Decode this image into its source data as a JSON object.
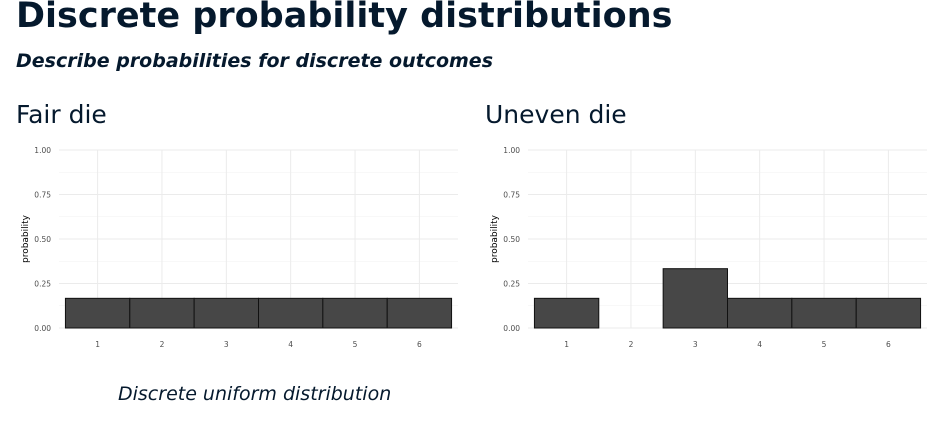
{
  "header": {
    "title": "Discrete probability distributions",
    "subtitle": "Describe probabilities for discrete outcomes"
  },
  "panels": [
    {
      "heading": "Fair die"
    },
    {
      "heading": "Uneven die"
    }
  ],
  "caption": "Discrete uniform distribution",
  "colors": {
    "bar_fill": "#474747",
    "bar_stroke": "#111111",
    "grid": "#ebebeb",
    "text": "#05192d"
  },
  "chart_data": [
    {
      "type": "bar",
      "categories": [
        "1",
        "2",
        "3",
        "4",
        "5",
        "6"
      ],
      "values": [
        0.1667,
        0.1667,
        0.1667,
        0.1667,
        0.1667,
        0.1667
      ],
      "xlabel": "",
      "ylabel": "probability",
      "ylim": [
        0,
        1
      ],
      "yticks": [
        "0.00",
        "0.25",
        "0.50",
        "0.75",
        "1.00"
      ],
      "grid": true
    },
    {
      "type": "bar",
      "categories": [
        "1",
        "2",
        "3",
        "4",
        "5",
        "6"
      ],
      "values": [
        0.1667,
        0,
        0.3333,
        0.1667,
        0.1667,
        0.1667
      ],
      "xlabel": "",
      "ylabel": "probability",
      "ylim": [
        0,
        1
      ],
      "yticks": [
        "0.00",
        "0.25",
        "0.50",
        "0.75",
        "1.00"
      ],
      "grid": true
    }
  ]
}
